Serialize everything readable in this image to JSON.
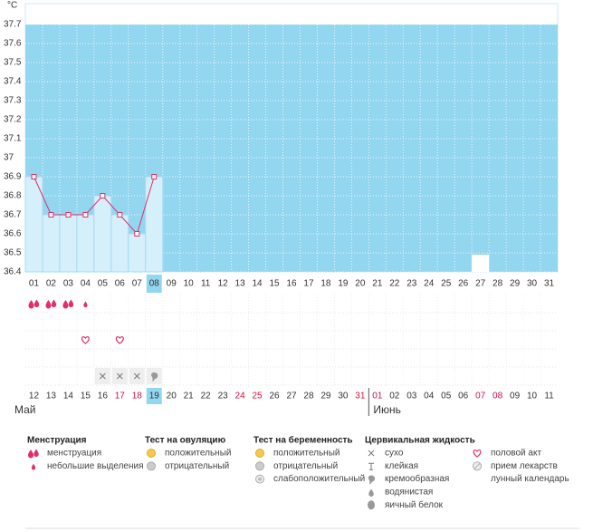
{
  "chart_data": {
    "type": "line",
    "y_label": "°C",
    "categories": [
      "01",
      "02",
      "03",
      "04",
      "05",
      "06",
      "07",
      "08",
      "09",
      "10",
      "11",
      "12",
      "13",
      "14",
      "15",
      "16",
      "17",
      "18",
      "19",
      "20",
      "21",
      "22",
      "23",
      "24",
      "25",
      "26",
      "27",
      "28",
      "29",
      "30",
      "31"
    ],
    "series": [
      {
        "color": "#e0306a",
        "bar_color": "#d5effb",
        "values": [
          36.9,
          36.7,
          36.7,
          36.7,
          36.8,
          36.7,
          36.6,
          36.9,
          null,
          null,
          null,
          null,
          null,
          null,
          null,
          null,
          null,
          null,
          null,
          null,
          null,
          null,
          null,
          null,
          null,
          null,
          null,
          null,
          null,
          null,
          null
        ]
      }
    ],
    "ylim": [
      36.4,
      37.8
    ],
    "yticks": [
      36.4,
      36.5,
      36.6,
      36.7,
      36.8,
      36.9,
      37,
      37.1,
      37.2,
      37.3,
      37.4,
      37.5,
      37.6,
      37.7
    ],
    "grid": true,
    "plot_color": "#93d6f0",
    "today": 7,
    "dates": [
      "12",
      "13",
      "14",
      "15",
      "16",
      "17",
      "18",
      "19",
      "20",
      "21",
      "22",
      "23",
      "24",
      "25",
      "26",
      "27",
      "28",
      "29",
      "30",
      "31",
      "01",
      "02",
      "03",
      "04",
      "05",
      "06",
      "07",
      "08",
      "09",
      "10",
      "11"
    ],
    "weekend": [
      false,
      false,
      false,
      false,
      false,
      true,
      true,
      false,
      false,
      false,
      false,
      false,
      true,
      true,
      false,
      false,
      false,
      false,
      false,
      true,
      true,
      false,
      false,
      false,
      false,
      false,
      true,
      true,
      false,
      false,
      false
    ],
    "weekend_color": "#cc1144",
    "months": [
      {
        "name": "Май",
        "start": 0
      },
      {
        "name": "Июнь",
        "start": 20
      }
    ],
    "chart_marks": {
      "group": 4,
      "marks": [
        null,
        null,
        null,
        null,
        null,
        null,
        null,
        null,
        null,
        null,
        null,
        null,
        null,
        null,
        null,
        null,
        null,
        null,
        null,
        null,
        null,
        null,
        null,
        null,
        null,
        null,
        2,
        null,
        null,
        null,
        null
      ]
    },
    "rows": [
      {
        "group": 0,
        "marks": [
          0,
          0,
          0,
          1,
          null,
          null,
          null,
          null,
          null,
          null,
          null,
          null,
          null,
          null,
          null,
          null,
          null,
          null,
          null,
          null,
          null,
          null,
          null,
          null,
          null,
          null,
          null,
          null,
          null,
          null,
          null
        ]
      },
      {
        "group": 1,
        "marks": [
          null,
          null,
          null,
          null,
          null,
          null,
          null,
          null,
          null,
          null,
          null,
          null,
          null,
          null,
          null,
          null,
          null,
          null,
          null,
          null,
          null,
          null,
          null,
          null,
          null,
          null,
          null,
          null,
          null,
          null,
          null
        ]
      },
      {
        "group": 4,
        "marks": [
          null,
          null,
          null,
          0,
          null,
          0,
          null,
          null,
          null,
          null,
          null,
          null,
          null,
          null,
          null,
          null,
          null,
          null,
          null,
          null,
          null,
          null,
          null,
          null,
          null,
          null,
          null,
          null,
          null,
          null,
          null
        ]
      },
      {
        "group": 2,
        "marks": [
          null,
          null,
          null,
          null,
          null,
          null,
          null,
          null,
          null,
          null,
          null,
          null,
          null,
          null,
          null,
          null,
          null,
          null,
          null,
          null,
          null,
          null,
          null,
          null,
          null,
          null,
          null,
          null,
          null,
          null,
          null
        ]
      },
      {
        "group": 3,
        "marks": [
          null,
          null,
          null,
          null,
          0,
          0,
          0,
          2,
          null,
          null,
          null,
          null,
          null,
          null,
          null,
          null,
          null,
          null,
          null,
          null,
          null,
          null,
          null,
          null,
          null,
          null,
          null,
          null,
          null,
          null,
          null
        ]
      }
    ],
    "legend": [
      {
        "title": "Менструация",
        "items": [
          "менструация",
          "небольшие выделения"
        ]
      },
      {
        "title": "Тест на овуляцию",
        "items": [
          "положительный",
          "отрицательный"
        ]
      },
      {
        "title": "Тест на беременность",
        "items": [
          "положительный",
          "отрицательный",
          "слабоположительный"
        ]
      },
      {
        "title": "Цервикальная жидкость",
        "items": [
          "сухо",
          "клейкая",
          "кремообразная",
          "водянистая",
          "яичный белок"
        ]
      },
      {
        "items": [
          "половой акт",
          "прием лекарств",
          "лунный календарь"
        ]
      }
    ]
  }
}
